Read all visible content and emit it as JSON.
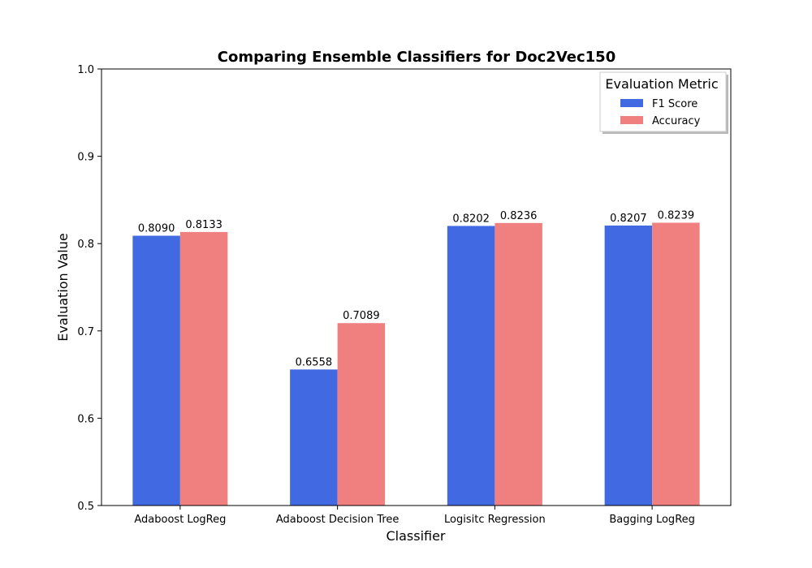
{
  "chart_data": {
    "type": "bar",
    "title": "Comparing Ensemble Classifiers for Doc2Vec150",
    "xlabel": "Classifier",
    "ylabel": "Evaluation Value",
    "categories": [
      "Adaboost LogReg",
      "Adaboost Decision Tree",
      "Logisitc Regression",
      "Bagging LogReg"
    ],
    "series": [
      {
        "name": "F1 Score",
        "color": "#4169e1",
        "values": [
          0.809,
          0.6558,
          0.8202,
          0.8207
        ],
        "labels": [
          "0.8090",
          "0.6558",
          "0.8202",
          "0.8207"
        ]
      },
      {
        "name": "Accuracy",
        "color": "#f08080",
        "values": [
          0.8133,
          0.7089,
          0.8236,
          0.8239
        ],
        "labels": [
          "0.8133",
          "0.7089",
          "0.8236",
          "0.8239"
        ]
      }
    ],
    "ylim": [
      0.5,
      1.0
    ],
    "yticks": [
      0.5,
      0.6,
      0.7,
      0.8,
      0.9,
      1.0
    ],
    "ytick_labels": [
      "0.5",
      "0.6",
      "0.7",
      "0.8",
      "0.9",
      "1.0"
    ],
    "grid": false,
    "legend": {
      "title": "Evaluation Metric",
      "position": "upper-right"
    }
  }
}
